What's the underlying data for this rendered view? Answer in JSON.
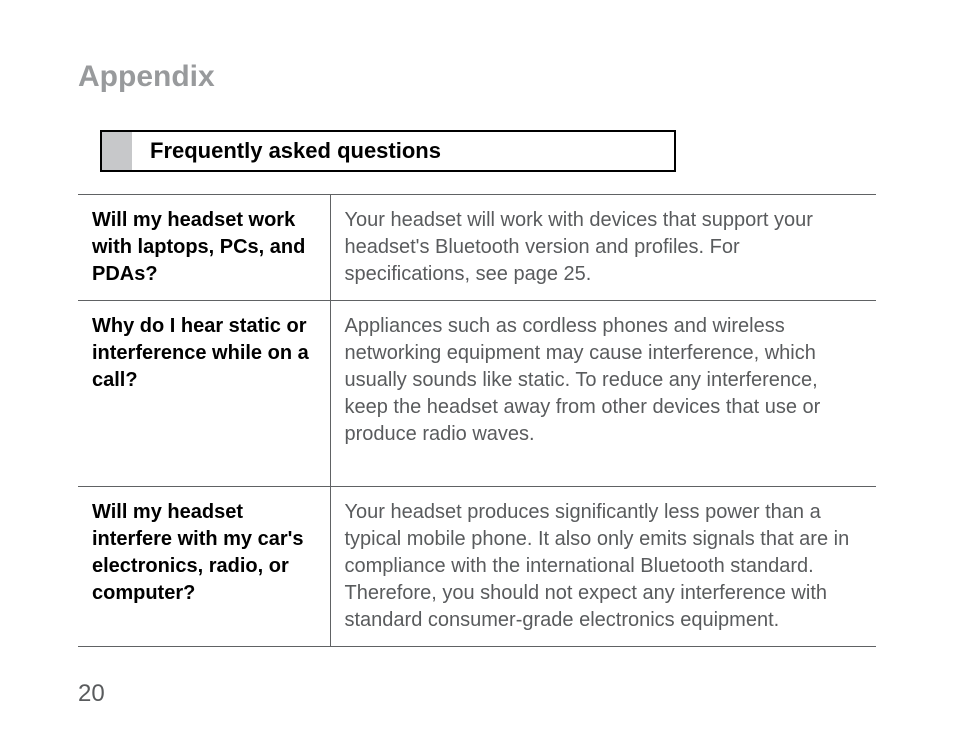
{
  "title": "Appendix",
  "section_label": "Frequently asked questions",
  "page_number": "20",
  "faq": [
    {
      "q": "Will my headset work with laptops, PCs, and PDAs?",
      "a": "Your headset will work with devices that support your headset's Bluetooth version and profiles. For specifications, see page 25."
    },
    {
      "q": "Why do I hear static or interference while on a call?",
      "a": "Appliances such as cordless phones and wireless networking equipment may cause interference, which usually sounds like static. To reduce any interference, keep the headset away from other devices that use or produce radio waves."
    },
    {
      "q": "Will my headset interfere with my car's electronics, radio, or computer?",
      "a": "Your headset produces significantly less power than a typical mobile phone. It also only emits signals that are in compliance with the international Bluetooth standard. Therefore, you should not expect any interference with standard consumer-grade electronics equipment."
    }
  ],
  "colors": {
    "title_color": "#989a9c",
    "text_color": "#595b5d",
    "border_color": "#000000",
    "rule_color": "#606264",
    "box_fill": "#c7c8ca",
    "background": "#ffffff"
  }
}
